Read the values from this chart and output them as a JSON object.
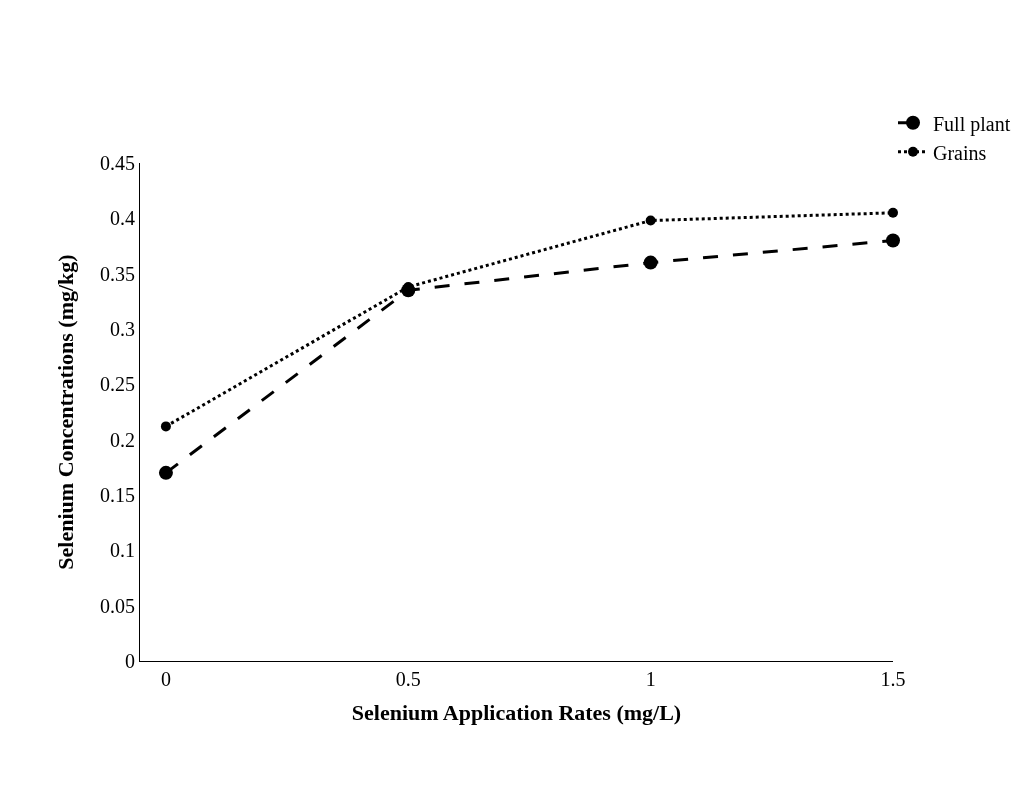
{
  "chart_data": {
    "type": "line",
    "xlabel": "Selenium Application Rates (mg/L)",
    "ylabel": "Selenium Concentrations (mg/kg)",
    "categories": [
      "0",
      "0.5",
      "1",
      "1.5"
    ],
    "series": [
      {
        "name": "Full plant",
        "color": "#000000",
        "line_style": "dashed",
        "values": [
          0.17,
          0.335,
          0.36,
          0.38
        ]
      },
      {
        "name": "Grains",
        "color": "#000000",
        "line_style": "dotted",
        "values": [
          0.212,
          0.338,
          0.398,
          0.405
        ]
      }
    ],
    "ylim": [
      0,
      0.45
    ],
    "yticks": [
      0,
      0.05,
      0.1,
      0.15,
      0.2,
      0.25,
      0.3,
      0.35,
      0.4,
      0.45
    ],
    "grid": false,
    "legend": "top right",
    "marker": "circle"
  }
}
